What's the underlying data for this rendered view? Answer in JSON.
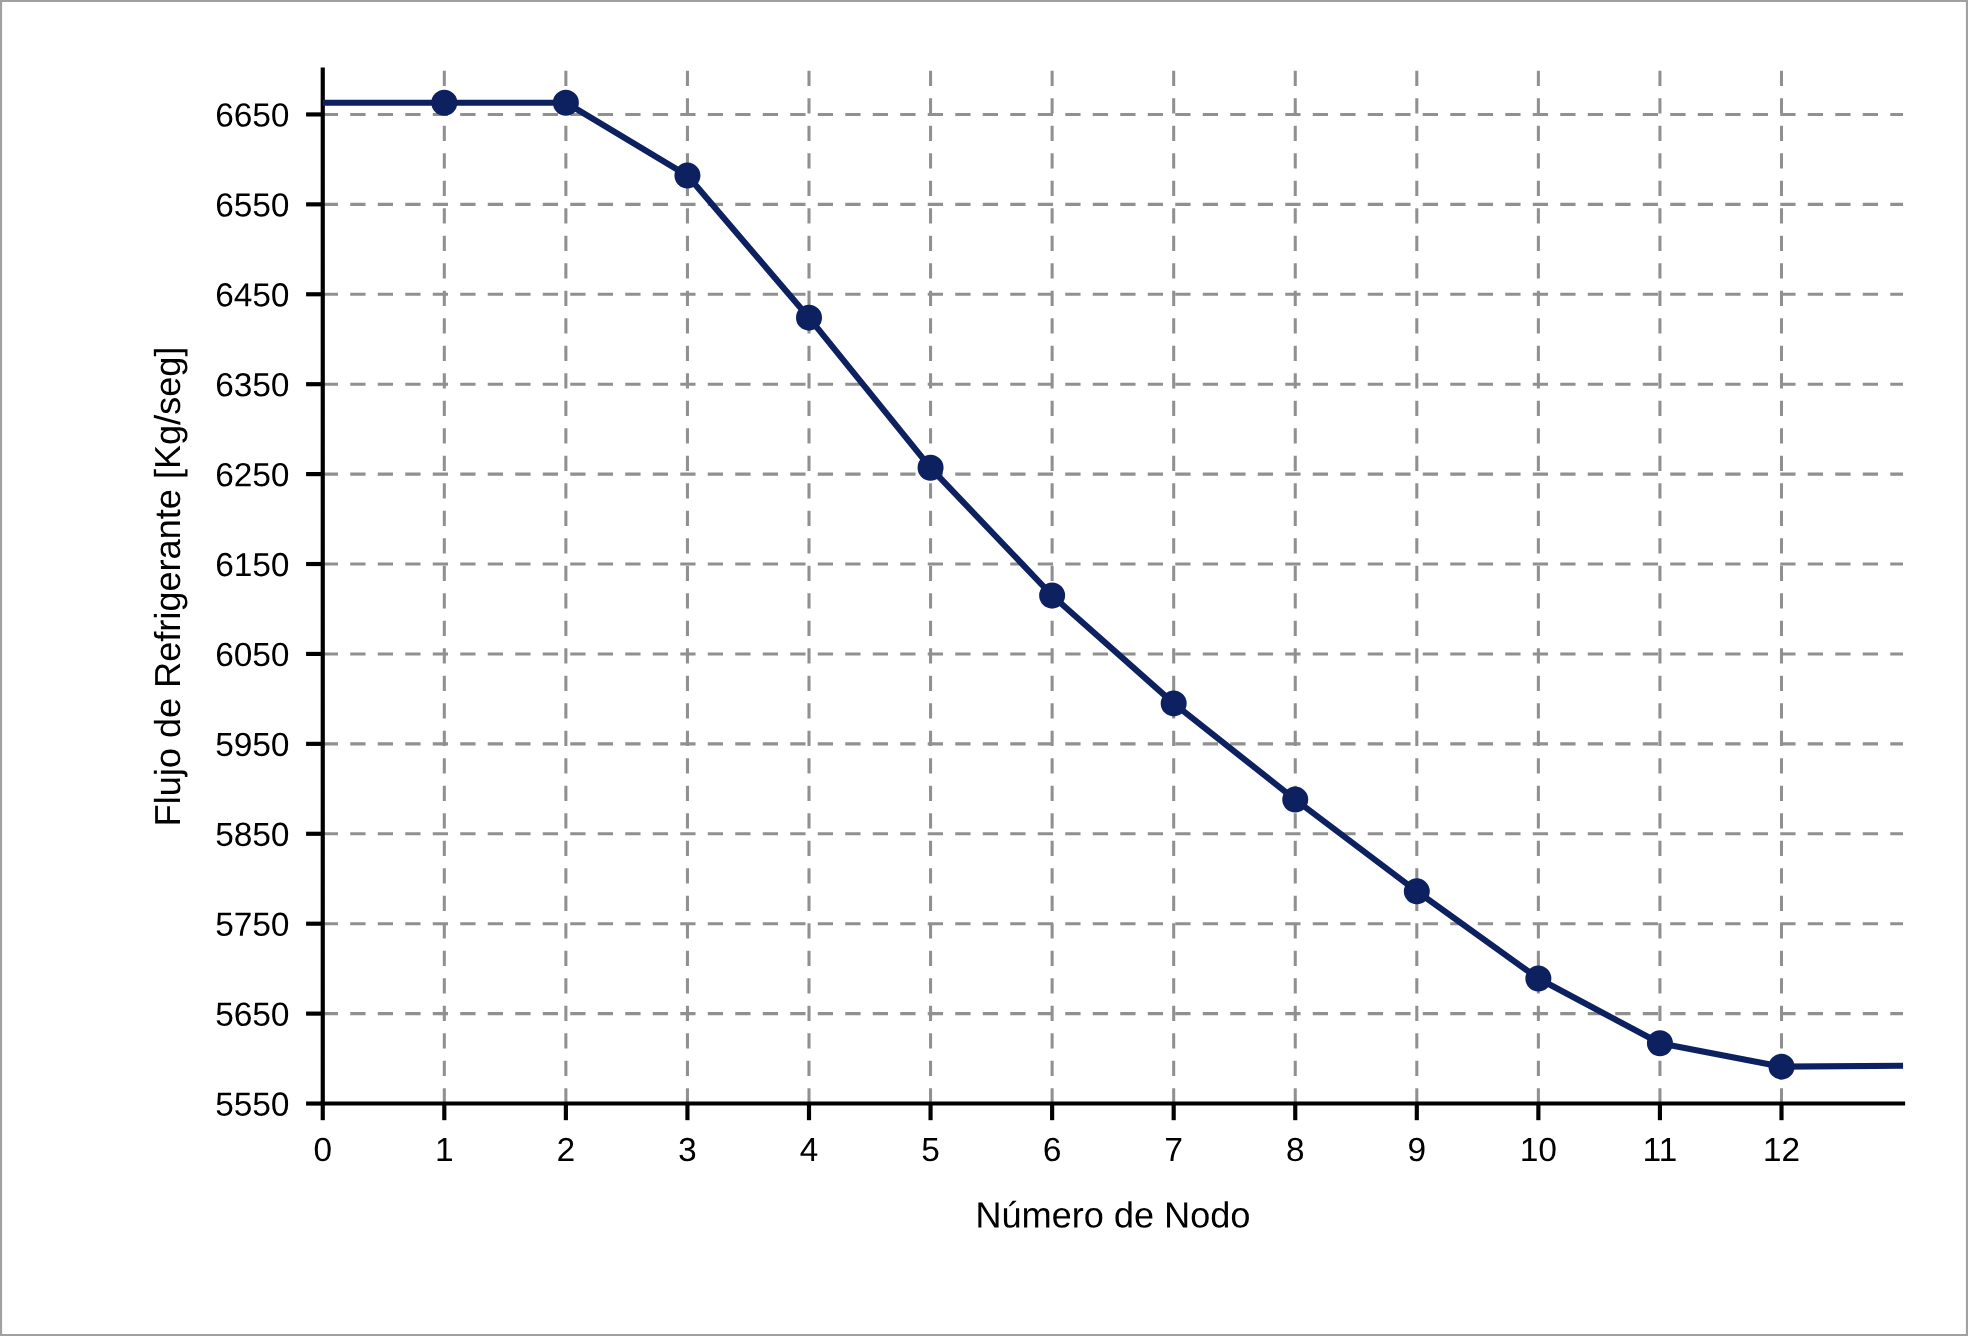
{
  "chart_data": {
    "type": "line",
    "xlabel": "Número de Nodo",
    "ylabel": "Flujo de Refrigerante [Kg/seg]",
    "xlim": [
      0,
      13
    ],
    "xticks": [
      0,
      1,
      2,
      3,
      4,
      5,
      6,
      7,
      8,
      9,
      10,
      11,
      12
    ],
    "ylim": [
      5550,
      6700
    ],
    "yticks": [
      5550,
      5650,
      5750,
      5850,
      5950,
      6050,
      6150,
      6250,
      6350,
      6450,
      6550,
      6650
    ],
    "grid": true,
    "series": [
      {
        "color": "#0d2161",
        "marker": "none",
        "line_style": "solid",
        "x": [
          0,
          1,
          2,
          3,
          4,
          5,
          6,
          7,
          8,
          9,
          10,
          11,
          12,
          13
        ],
        "values": [
          6663,
          6663,
          6663,
          6582,
          6424,
          6257,
          6115,
          5995,
          5888,
          5786,
          5689,
          5617,
          5591,
          5592
        ]
      },
      {
        "type": "scatter",
        "color": "#0d2161",
        "marker": "circle",
        "x": [
          1,
          2,
          3,
          4,
          5,
          6,
          7,
          8,
          9,
          10,
          11,
          12
        ],
        "values": [
          6663,
          6663,
          6582,
          6424,
          6257,
          6115,
          5995,
          5888,
          5786,
          5689,
          5617,
          5591
        ]
      }
    ]
  }
}
